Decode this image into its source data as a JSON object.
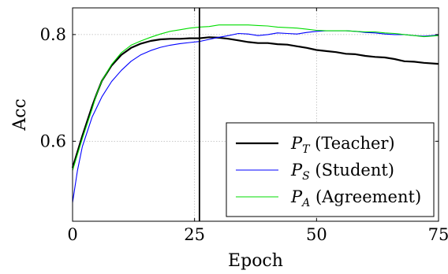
{
  "chart_data": {
    "type": "line",
    "xlabel": "Epoch",
    "ylabel": "Acc",
    "xlim": [
      0,
      75
    ],
    "ylim": [
      0.45,
      0.85
    ],
    "x_ticks": [
      0,
      25,
      50,
      75
    ],
    "x_tick_labels": [
      "0",
      "25",
      "50",
      "75"
    ],
    "y_ticks": [
      0.6,
      0.8
    ],
    "y_tick_labels": [
      "0.6",
      "0.8"
    ],
    "grid": "x and y, dotted",
    "legend_position": "bottom-right",
    "annotations": [
      {
        "type": "vertical_line",
        "x": 26,
        "color": "#000000"
      }
    ],
    "series": [
      {
        "name": "P_T (Teacher)",
        "legend_symbol": "P",
        "legend_subscript": "T",
        "legend_suffix": " (Teacher)",
        "color": "#000000",
        "x": [
          0,
          2,
          4,
          5,
          6,
          8,
          10,
          12,
          14,
          16,
          18,
          20,
          22,
          24,
          26,
          28,
          30,
          32,
          34,
          36,
          38,
          40,
          42,
          44,
          46,
          48,
          50,
          52,
          54,
          56,
          58,
          60,
          62,
          64,
          66,
          68,
          70,
          72,
          75
        ],
        "y": [
          0.55,
          0.61,
          0.665,
          0.69,
          0.713,
          0.742,
          0.762,
          0.775,
          0.783,
          0.788,
          0.791,
          0.792,
          0.792,
          0.793,
          0.793,
          0.795,
          0.794,
          0.792,
          0.789,
          0.786,
          0.784,
          0.784,
          0.782,
          0.781,
          0.778,
          0.775,
          0.771,
          0.769,
          0.767,
          0.764,
          0.763,
          0.76,
          0.758,
          0.757,
          0.754,
          0.75,
          0.749,
          0.747,
          0.745
        ]
      },
      {
        "name": "P_S (Student)",
        "legend_symbol": "P",
        "legend_subscript": "S",
        "legend_suffix": " (Student)",
        "color": "#0000ff",
        "x": [
          0,
          1,
          2,
          4,
          6,
          8,
          10,
          12,
          14,
          16,
          18,
          20,
          22,
          24,
          26,
          28,
          30,
          32,
          34,
          36,
          38,
          40,
          42,
          44,
          46,
          48,
          50,
          52,
          54,
          56,
          58,
          60,
          62,
          64,
          66,
          68,
          70,
          72,
          75
        ],
        "y": [
          0.485,
          0.545,
          0.59,
          0.645,
          0.683,
          0.712,
          0.733,
          0.75,
          0.762,
          0.77,
          0.776,
          0.78,
          0.783,
          0.785,
          0.787,
          0.791,
          0.795,
          0.798,
          0.802,
          0.801,
          0.798,
          0.8,
          0.803,
          0.802,
          0.801,
          0.804,
          0.806,
          0.807,
          0.807,
          0.807,
          0.806,
          0.804,
          0.803,
          0.801,
          0.8,
          0.8,
          0.798,
          0.797,
          0.799
        ]
      },
      {
        "name": "P_A (Agreement)",
        "legend_symbol": "P",
        "legend_subscript": "A",
        "legend_suffix": " (Agreement)",
        "color": "#00dd00",
        "x": [
          0,
          2,
          4,
          5,
          6,
          8,
          10,
          12,
          14,
          16,
          18,
          20,
          22,
          24,
          26,
          28,
          30,
          32,
          34,
          36,
          38,
          40,
          42,
          44,
          46,
          48,
          50,
          52,
          54,
          56,
          58,
          60,
          62,
          64,
          66,
          68,
          70,
          72,
          75
        ],
        "y": [
          0.545,
          0.605,
          0.66,
          0.69,
          0.713,
          0.744,
          0.766,
          0.78,
          0.788,
          0.795,
          0.801,
          0.806,
          0.809,
          0.812,
          0.814,
          0.815,
          0.818,
          0.818,
          0.818,
          0.818,
          0.817,
          0.816,
          0.814,
          0.813,
          0.812,
          0.81,
          0.808,
          0.807,
          0.807,
          0.807,
          0.806,
          0.805,
          0.805,
          0.803,
          0.802,
          0.8,
          0.798,
          0.796,
          0.798
        ]
      }
    ]
  }
}
